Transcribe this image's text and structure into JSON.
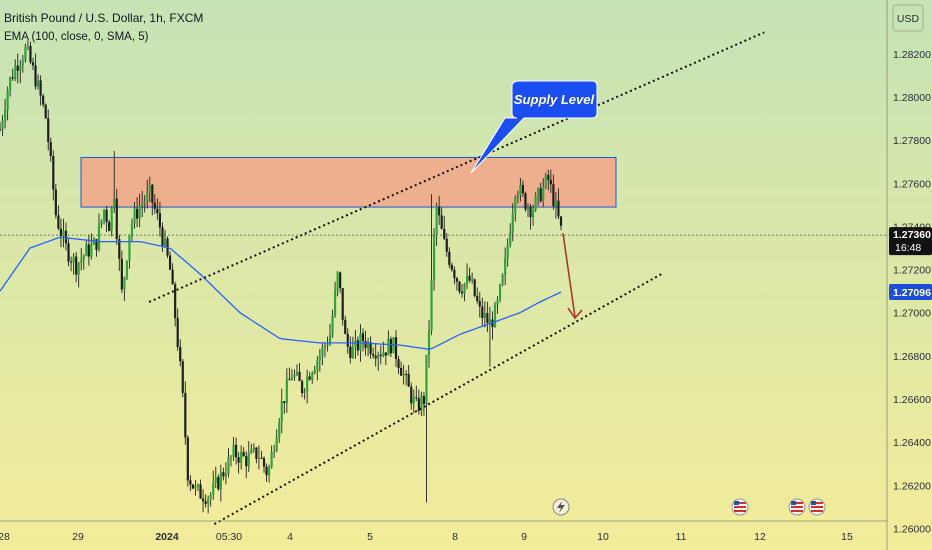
{
  "header": {
    "title": "British Pound / U.S. Dollar, 1h, FXCM",
    "indicator": "EMA (100, close, 0, SMA, 5)"
  },
  "currency_label": "USD",
  "annotation": {
    "text": "Supply Level"
  },
  "price_tags": {
    "last": "1.27360",
    "countdown": "16:48",
    "ema": "1.27096"
  },
  "colors": {
    "bg_top": "#c6e3b5",
    "bg_bottom": "#f3ec9a",
    "candle": "#2fa33c",
    "wick": "#222222",
    "ema_line": "#2962ff",
    "supply_fill": "#f2a48a",
    "supply_border": "#1a57d6",
    "trendline": "#111111",
    "projection_arrow": "#a83a2a",
    "callout_fill": "#1a4ef0",
    "last_tag": "#111111",
    "ema_tag": "#1d4ed8"
  },
  "chart_data": {
    "type": "candlestick",
    "symbol": "GBPUSD",
    "title": "British Pound / U.S. Dollar, 1h, FXCM",
    "indicator": "EMA (100, close, 0, SMA, 5)",
    "ylim": [
      1.259,
      1.2845
    ],
    "y_ticks": [
      1.26,
      1.262,
      1.264,
      1.266,
      1.268,
      1.27,
      1.272,
      1.274,
      1.276,
      1.278,
      1.28,
      1.282
    ],
    "y_tick_labels": [
      "1.26000",
      "1.26200",
      "1.26400",
      "1.26600",
      "1.26800",
      "1.27000",
      "1.27200",
      "1.27400",
      "1.27600",
      "1.27800",
      "1.28000",
      "1.28200"
    ],
    "x_tick_labels": [
      "28",
      "29",
      "2024",
      "05:30",
      "4",
      "5",
      "8",
      "9",
      "10",
      "11",
      "12",
      "15"
    ],
    "candle_count": 222,
    "last_price": 1.2736,
    "ema_last": 1.27096,
    "price_path": [
      [
        0,
        1.2785
      ],
      [
        8,
        1.2805
      ],
      [
        16,
        1.2815
      ],
      [
        26,
        1.2822
      ],
      [
        36,
        1.2808
      ],
      [
        46,
        1.279
      ],
      [
        56,
        1.2745
      ],
      [
        66,
        1.273
      ],
      [
        76,
        1.2722
      ],
      [
        86,
        1.2728
      ],
      [
        96,
        1.2732
      ],
      [
        104,
        1.2748
      ],
      [
        110,
        1.274
      ],
      [
        114,
        1.2758
      ],
      [
        118,
        1.273
      ],
      [
        122,
        1.2708
      ],
      [
        130,
        1.274
      ],
      [
        140,
        1.275
      ],
      [
        150,
        1.2755
      ],
      [
        160,
        1.274
      ],
      [
        170,
        1.272
      ],
      [
        176,
        1.2695
      ],
      [
        182,
        1.2665
      ],
      [
        188,
        1.2625
      ],
      [
        196,
        1.2617
      ],
      [
        210,
        1.2615
      ],
      [
        222,
        1.2625
      ],
      [
        234,
        1.2635
      ],
      [
        246,
        1.2632
      ],
      [
        258,
        1.2635
      ],
      [
        268,
        1.2625
      ],
      [
        280,
        1.2655
      ],
      [
        292,
        1.2672
      ],
      [
        302,
        1.2665
      ],
      [
        312,
        1.2675
      ],
      [
        322,
        1.2682
      ],
      [
        330,
        1.269
      ],
      [
        338,
        1.2718
      ],
      [
        346,
        1.2685
      ],
      [
        354,
        1.2682
      ],
      [
        362,
        1.2688
      ],
      [
        372,
        1.2684
      ],
      [
        382,
        1.2682
      ],
      [
        392,
        1.2686
      ],
      [
        400,
        1.2676
      ],
      [
        408,
        1.2665
      ],
      [
        416,
        1.2656
      ],
      [
        424,
        1.266
      ],
      [
        430,
        1.27
      ],
      [
        436,
        1.275
      ],
      [
        444,
        1.2732
      ],
      [
        452,
        1.2722
      ],
      [
        460,
        1.2712
      ],
      [
        470,
        1.2715
      ],
      [
        480,
        1.27
      ],
      [
        490,
        1.2695
      ],
      [
        496,
        1.27
      ],
      [
        504,
        1.2718
      ],
      [
        510,
        1.274
      ],
      [
        516,
        1.276
      ],
      [
        524,
        1.2752
      ],
      [
        532,
        1.2748
      ],
      [
        540,
        1.2755
      ],
      [
        548,
        1.2762
      ],
      [
        554,
        1.2752
      ],
      [
        561,
        1.2738
      ]
    ],
    "ema_path": [
      [
        0,
        1.271
      ],
      [
        30,
        1.273
      ],
      [
        60,
        1.2735
      ],
      [
        100,
        1.2733
      ],
      [
        140,
        1.2733
      ],
      [
        170,
        1.273
      ],
      [
        200,
        1.2718
      ],
      [
        240,
        1.27
      ],
      [
        280,
        1.2688
      ],
      [
        320,
        1.2686
      ],
      [
        360,
        1.2686
      ],
      [
        400,
        1.2685
      ],
      [
        430,
        1.2683
      ],
      [
        460,
        1.269
      ],
      [
        490,
        1.2695
      ],
      [
        520,
        1.27
      ],
      [
        540,
        1.2705
      ],
      [
        561,
        1.27096
      ]
    ],
    "supply_zone": {
      "price_high": 1.2772,
      "price_low": 1.2749
    },
    "channel": {
      "upper": [
        [
          1.2705,
          0.16
        ],
        [
          1.283,
          0.82
        ]
      ],
      "lower": [
        [
          1.2602,
          0.23
        ],
        [
          1.2718,
          0.71
        ]
      ]
    },
    "projection_target": 1.2698
  }
}
